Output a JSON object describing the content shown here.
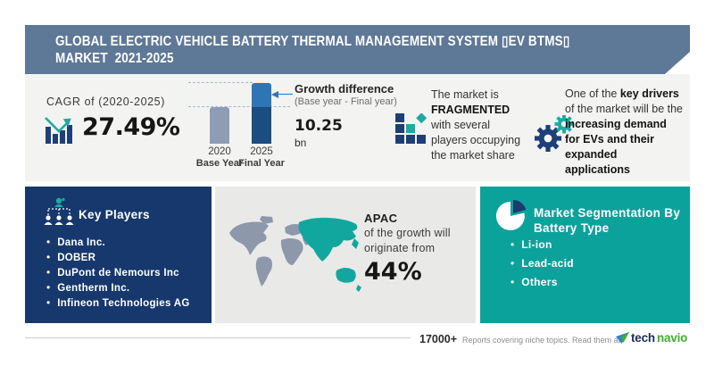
{
  "colors": {
    "banner_bg": "#5e7897",
    "panel_bg": "#f3f3f1",
    "navy_box_bg": "#17386d",
    "teal_box_bg": "#0ba29b",
    "map_box_bg": "#e9e9e8",
    "bar_2020": "#8e9cb6",
    "bar_2025_top": "#2e75b6",
    "bar_2025_bottom": "#1b4d80",
    "accent_teal": "#1fa9a1",
    "accent_navy": "#1d4077",
    "map_gray": "#8d98ab",
    "map_teal": "#12a79e",
    "logo_tech": "#1b2e57",
    "logo_navio": "#3fae2f"
  },
  "banner": {
    "title_line1": "GLOBAL ELECTRIC VEHICLE BATTERY THERMAL MANAGEMENT SYSTEM ▯EV BTMS▯",
    "title_line2": "MARKET  2021-2025"
  },
  "cagr": {
    "label": "CAGR of (2020-2025)",
    "value": "27.49%",
    "icon": "bar-chart-trend-icon"
  },
  "growth_chart": {
    "bars": [
      {
        "year": "2020",
        "label": "Base Year"
      },
      {
        "year": "2025",
        "label": "Final Year"
      }
    ],
    "callout_title": "Growth difference",
    "callout_subtitle": "(Base year - Final year)",
    "difference_value": "10.25",
    "difference_unit": "bn"
  },
  "chart_data": {
    "type": "bar",
    "categories": [
      "2020 Base Year",
      "2025 Final Year"
    ],
    "values_relative": [
      0.6,
      1.0
    ],
    "annotations": {
      "growth_difference_bn": 10.25,
      "cagr_2020_2025_pct": 27.49,
      "apac_growth_share_pct": 44
    },
    "title": "Growth difference (Base year - Final year)",
    "legend": "none",
    "grid": "dashed guide lines at bar tops"
  },
  "fragmented": {
    "icon": "mosaic-squares-icon",
    "lines": [
      [
        {
          "t": "The market is",
          "b": false
        }
      ],
      [
        {
          "t": "FRAGMENTED",
          "b": true
        }
      ],
      [
        {
          "t": "with several",
          "b": false
        }
      ],
      [
        {
          "t": "players occupying",
          "b": false
        }
      ],
      [
        {
          "t": "the market share",
          "b": false
        }
      ]
    ]
  },
  "driver": {
    "icon": "gears-icon",
    "lines": [
      [
        {
          "t": "One of the ",
          "b": false
        },
        {
          "t": "key drivers",
          "b": true
        }
      ],
      [
        {
          "t": "of the market will be the",
          "b": false
        }
      ],
      [
        {
          "t": "increasing demand",
          "b": true
        }
      ],
      [
        {
          "t": "for EVs and their",
          "b": true
        }
      ],
      [
        {
          "t": "expanded",
          "b": true
        }
      ],
      [
        {
          "t": "applications",
          "b": true
        }
      ]
    ]
  },
  "key_players": {
    "icon": "org-chart-people-icon",
    "title": "Key Players",
    "items": [
      "Dana Inc.",
      "DOBER",
      "DuPont de Nemours Inc",
      "Gentherm Inc.",
      "Infineon Technologies AG"
    ]
  },
  "regional": {
    "icon": "world-map",
    "region": "APAC",
    "line1": "of the growth will",
    "line2": "originate from",
    "value": "44%"
  },
  "segmentation": {
    "icon": "pie-chart-icon",
    "title_line1": "Market Segmentation By",
    "title_line2": "Battery Type",
    "items": [
      "Li-ion",
      "Lead-acid",
      "Others"
    ]
  },
  "footer": {
    "count": "17000+",
    "tagline": "Reports covering niche topics. Read them at",
    "brand_tech": "tech",
    "brand_navio": "navio",
    "logo_icon": "technavio-arrow-icon"
  }
}
